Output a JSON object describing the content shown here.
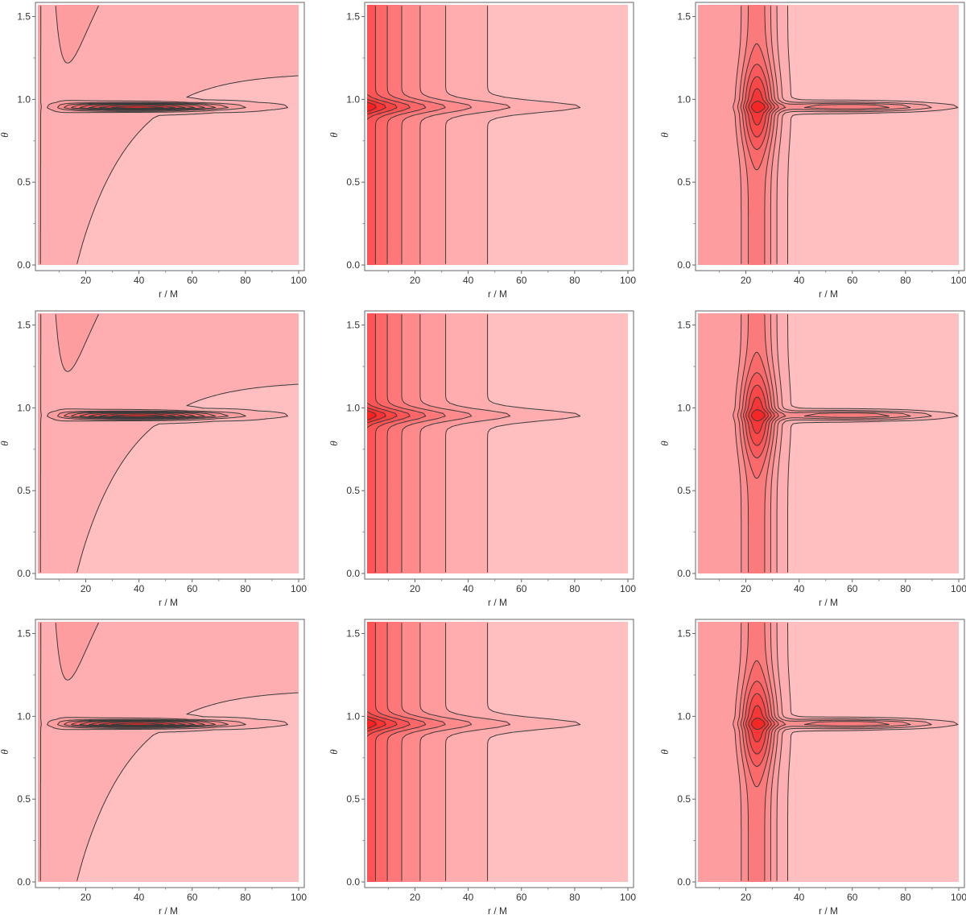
{
  "figure": {
    "rows": 3,
    "cols": 3
  },
  "chart_data": [
    {
      "type": "heatmap",
      "subtype": "contour",
      "panel": "row1-col1",
      "variant": "A",
      "xlabel": "r / M",
      "ylabel": "θ",
      "xlim": [
        2,
        100
      ],
      "ylim": [
        0,
        1.5708
      ],
      "x_ticks": [
        "20",
        "40",
        "60",
        "80",
        "100"
      ],
      "y_ticks": [
        "0.0",
        "0.5",
        "1.0",
        "1.5"
      ],
      "colors": {
        "darkest": "#f62626",
        "lightest": "#ffbfc1"
      }
    },
    {
      "type": "heatmap",
      "subtype": "contour",
      "panel": "row1-col2",
      "variant": "B",
      "xlabel": "r / M",
      "ylabel": "θ",
      "xlim": [
        2,
        100
      ],
      "ylim": [
        0,
        1.5708
      ],
      "x_ticks": [
        "20",
        "40",
        "60",
        "80",
        "100"
      ],
      "y_ticks": [
        "0.0",
        "0.5",
        "1.0",
        "1.5"
      ],
      "colors": {
        "darkest": "#ff1f1f",
        "lightest": "#ffbfc1"
      }
    },
    {
      "type": "heatmap",
      "subtype": "contour",
      "panel": "row1-col3",
      "variant": "C",
      "xlabel": "r / M",
      "ylabel": "θ",
      "xlim": [
        2,
        100
      ],
      "ylim": [
        0,
        1.5708
      ],
      "x_ticks": [
        "20",
        "40",
        "60",
        "80",
        "100"
      ],
      "y_ticks": [
        "0.0",
        "0.5",
        "1.0",
        "1.5"
      ],
      "colors": {
        "darkest": "#f62626",
        "lightest": "#ffbfc1"
      }
    },
    {
      "type": "heatmap",
      "subtype": "contour",
      "panel": "row2-col1",
      "variant": "A",
      "xlabel": "r / M",
      "ylabel": "θ",
      "xlim": [
        2,
        100
      ],
      "ylim": [
        0,
        1.5708
      ],
      "x_ticks": [
        "20",
        "40",
        "60",
        "80",
        "100"
      ],
      "y_ticks": [
        "0.0",
        "0.5",
        "1.0",
        "1.5"
      ],
      "colors": {
        "darkest": "#f62626",
        "lightest": "#ffbfc1"
      }
    },
    {
      "type": "heatmap",
      "subtype": "contour",
      "panel": "row2-col2",
      "variant": "B",
      "xlabel": "r / M",
      "ylabel": "θ",
      "xlim": [
        2,
        100
      ],
      "ylim": [
        0,
        1.5708
      ],
      "x_ticks": [
        "20",
        "40",
        "60",
        "80",
        "100"
      ],
      "y_ticks": [
        "0.0",
        "0.5",
        "1.0",
        "1.5"
      ],
      "colors": {
        "darkest": "#ff1f1f",
        "lightest": "#ffbfc1"
      }
    },
    {
      "type": "heatmap",
      "subtype": "contour",
      "panel": "row2-col3",
      "variant": "C",
      "xlabel": "r / M",
      "ylabel": "θ",
      "xlim": [
        2,
        100
      ],
      "ylim": [
        0,
        1.5708
      ],
      "x_ticks": [
        "20",
        "40",
        "60",
        "80",
        "100"
      ],
      "y_ticks": [
        "0.0",
        "0.5",
        "1.0",
        "1.5"
      ],
      "colors": {
        "darkest": "#f62626",
        "lightest": "#ffbfc1"
      }
    },
    {
      "type": "heatmap",
      "subtype": "contour",
      "panel": "row3-col1",
      "variant": "A",
      "xlabel": "r / M",
      "ylabel": "θ",
      "xlim": [
        2,
        100
      ],
      "ylim": [
        0,
        1.5708
      ],
      "x_ticks": [
        "20",
        "40",
        "60",
        "80",
        "100"
      ],
      "y_ticks": [
        "0.0",
        "0.5",
        "1.0",
        "1.5"
      ],
      "colors": {
        "darkest": "#f62626",
        "lightest": "#ffbfc1"
      }
    },
    {
      "type": "heatmap",
      "subtype": "contour",
      "panel": "row3-col2",
      "variant": "B",
      "xlabel": "r / M",
      "ylabel": "θ",
      "xlim": [
        2,
        100
      ],
      "ylim": [
        0,
        1.5708
      ],
      "x_ticks": [
        "20",
        "40",
        "60",
        "80",
        "100"
      ],
      "y_ticks": [
        "0.0",
        "0.5",
        "1.0",
        "1.5"
      ],
      "colors": {
        "darkest": "#ff1f1f",
        "lightest": "#ffbfc1"
      }
    },
    {
      "type": "heatmap",
      "subtype": "contour",
      "panel": "row3-col3",
      "variant": "C",
      "xlabel": "r / M",
      "ylabel": "θ",
      "xlim": [
        2,
        100
      ],
      "ylim": [
        0,
        1.5708
      ],
      "x_ticks": [
        "20",
        "40",
        "60",
        "80",
        "100"
      ],
      "y_ticks": [
        "0.0",
        "0.5",
        "1.0",
        "1.5"
      ],
      "colors": {
        "darkest": "#f62626",
        "lightest": "#ffbfc1"
      }
    }
  ]
}
